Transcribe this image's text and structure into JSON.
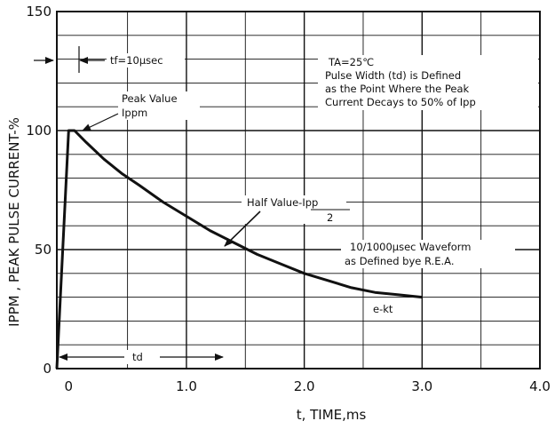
{
  "chart_data": {
    "type": "line",
    "xlabel": "t, TIME,ms",
    "ylabel": "IPPM , PEAK PULSE CURRENT-%",
    "xlim": [
      -0.1,
      4.0
    ],
    "ylim": [
      0,
      150
    ],
    "x_ticks": [
      {
        "value": 0,
        "label": "0"
      },
      {
        "value": 1.0,
        "label": "1.0"
      },
      {
        "value": 2.0,
        "label": "2.0"
      },
      {
        "value": 3.0,
        "label": "3.0"
      },
      {
        "value": 4.0,
        "label": "4.0"
      }
    ],
    "y_ticks": [
      {
        "value": 0,
        "label": "0"
      },
      {
        "value": 50,
        "label": "50"
      },
      {
        "value": 100,
        "label": "100"
      },
      {
        "value": 150,
        "label": "150"
      }
    ],
    "grid": true,
    "series": [
      {
        "x": [
          -0.1,
          0.0,
          0.05,
          0.15,
          0.3,
          0.45,
          0.6,
          0.8,
          1.0,
          1.2,
          1.4,
          1.6,
          1.8,
          2.0,
          2.2,
          2.4,
          2.6,
          2.8,
          3.0
        ],
        "y": [
          0,
          100,
          100,
          95,
          88,
          82,
          77,
          70,
          64,
          58,
          53,
          48,
          44,
          40,
          37,
          34,
          32,
          31,
          30
        ]
      }
    ],
    "annotations": {
      "tf": "tf=10μsec",
      "ta_line1": "TA=25℃",
      "ta_line2": "Pulse Width (td) is Defined",
      "ta_line3": "as the Point Where the Peak",
      "ta_line4": "Current Decays to 50% of Ipp",
      "peak_line1": "Peak Value",
      "peak_line2": "Ippm",
      "half_line1": "Half Value-Ipp",
      "half_denominator": "2",
      "waveform_line1": "10/1000μsec Waveform",
      "waveform_line2": "as Defined bye R.E.A.",
      "ekt": "e-kt",
      "td": "td"
    }
  }
}
